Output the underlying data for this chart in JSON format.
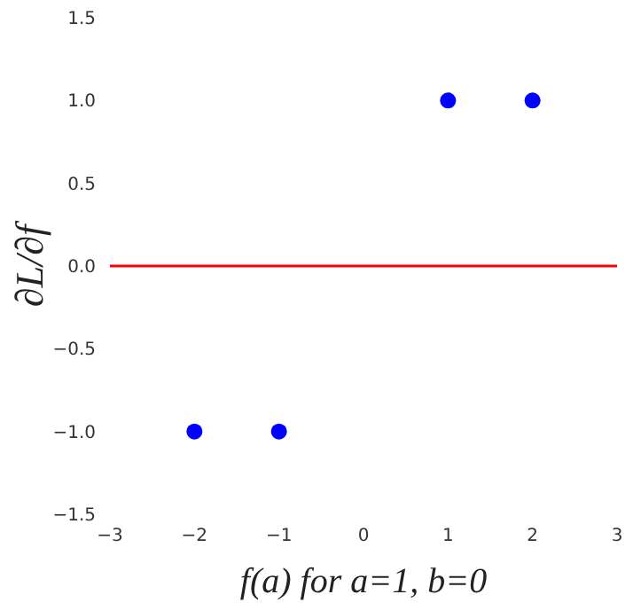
{
  "chart_data": {
    "type": "scatter",
    "xlabel": "f(a)  for  a=1, b=0",
    "ylabel": "∂L/∂f",
    "x": [
      -2,
      -1,
      1,
      2
    ],
    "series": [
      {
        "color": "#0000ff",
        "values": [
          -1,
          -1,
          1,
          1
        ]
      }
    ],
    "marker": "circle",
    "xlim": [
      -3,
      3
    ],
    "xticks": [
      {
        "value": -3,
        "label": "−3"
      },
      {
        "value": -2,
        "label": "−2"
      },
      {
        "value": -1,
        "label": "−1"
      },
      0,
      1,
      2,
      3
    ],
    "ylim": [
      -1.5,
      1.5
    ],
    "yticks": [
      {
        "value": -1.5,
        "label": "−1.5"
      },
      {
        "value": -1,
        "label": "−1.0"
      },
      {
        "value": -0.5,
        "label": "−0.5"
      },
      {
        "value": 0,
        "label": "0.0"
      },
      {
        "value": 0.5,
        "label": "0.5"
      },
      {
        "value": 1,
        "label": "1.0"
      },
      {
        "value": 1.5,
        "label": "1.5"
      }
    ],
    "ref_lines": [
      {
        "axis": "y",
        "value": 0,
        "color": "#ff0000",
        "line_style": "solid"
      }
    ],
    "grid": false,
    "legend": false
  }
}
